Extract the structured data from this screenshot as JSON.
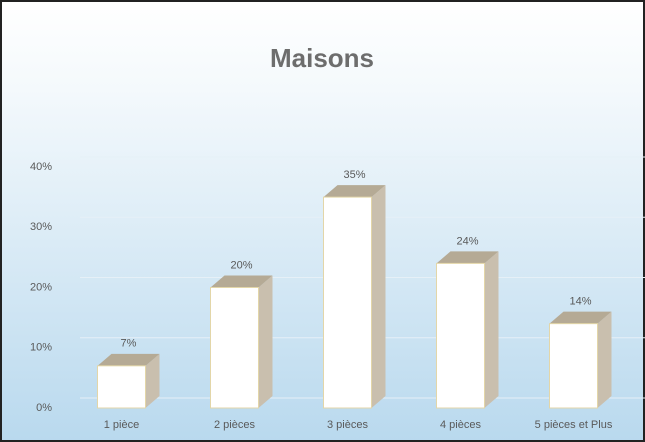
{
  "chart_data": {
    "type": "bar",
    "title": "Maisons",
    "categories": [
      "1 pièce",
      "2 pièces",
      "3 pièces",
      "4 pièces",
      "5 pièces et Plus"
    ],
    "values": [
      7,
      20,
      35,
      24,
      14
    ],
    "value_labels": [
      "7%",
      "20%",
      "35%",
      "24%",
      "14%"
    ],
    "color": "#ffffff",
    "ylim": [
      0,
      40
    ],
    "yticks": [
      {
        "value": 0,
        "label": "0%"
      },
      {
        "value": 10,
        "label": "10%"
      },
      {
        "value": 20,
        "label": "20%"
      },
      {
        "value": 30,
        "label": "30%"
      },
      {
        "value": 40,
        "label": "40%"
      }
    ],
    "grid": true
  }
}
